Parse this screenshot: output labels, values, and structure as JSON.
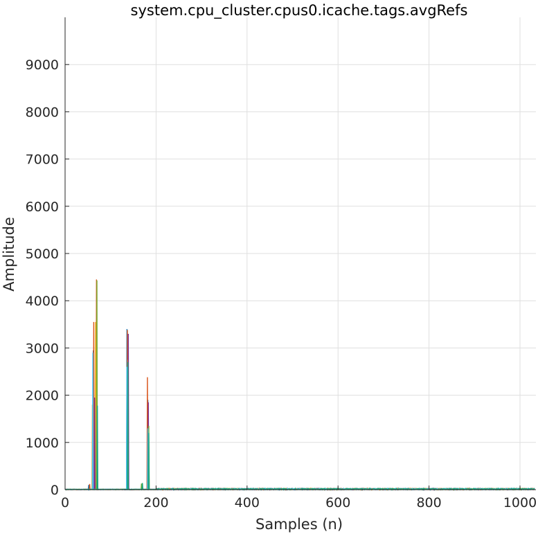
{
  "chart_data": {
    "type": "line",
    "title": "system.cpu_cluster.cpus0.icache.tags.avgRefs",
    "xlabel": "Samples (n)",
    "ylabel": "Amplitude",
    "xlim": [
      0,
      1035
    ],
    "ylim": [
      0,
      10000
    ],
    "xticks": [
      0,
      200,
      400,
      600,
      800,
      1000
    ],
    "yticks": [
      0,
      1000,
      2000,
      3000,
      4000,
      5000,
      6000,
      7000,
      8000,
      9000
    ],
    "grid": true,
    "series": [
      {
        "color": "#0072bd",
        "peaks": [
          [
            52,
            100
          ],
          [
            62,
            2950
          ],
          [
            68,
            1750
          ],
          [
            136,
            3400
          ],
          [
            182,
            1900
          ]
        ]
      },
      {
        "color": "#d95319",
        "peaks": [
          [
            54,
            120
          ],
          [
            63,
            3550
          ],
          [
            69,
            4450
          ],
          [
            137,
            3380
          ],
          [
            181,
            2380
          ]
        ]
      },
      {
        "color": "#edb120",
        "peaks": [
          [
            60,
            1800
          ],
          [
            67,
            3550
          ],
          [
            138,
            2750
          ],
          [
            183,
            1150
          ]
        ]
      },
      {
        "color": "#7e2f8e",
        "peaks": [
          [
            65,
            1950
          ],
          [
            139,
            3300
          ],
          [
            183,
            1850
          ]
        ]
      },
      {
        "color": "#77ac30",
        "peaks": [
          [
            70,
            4430
          ],
          [
            168,
            130
          ],
          [
            184,
            1350
          ]
        ]
      },
      {
        "color": "#4dbeee",
        "peaks": [
          [
            61,
            2900
          ],
          [
            136,
            2600
          ],
          [
            182,
            1300
          ]
        ]
      },
      {
        "color": "#1aa37a",
        "peaks": [
          [
            71,
            1780
          ],
          [
            138,
            2700
          ],
          [
            170,
            140
          ],
          [
            184,
            1200
          ]
        ]
      }
    ]
  }
}
